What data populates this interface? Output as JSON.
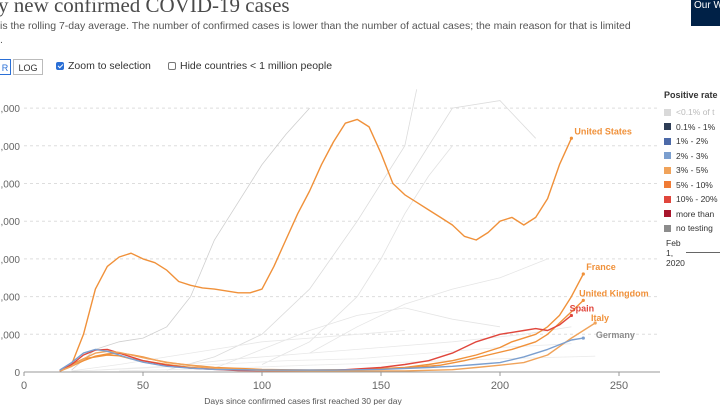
{
  "header": {
    "title": "y new confirmed COVID-19 cases",
    "subtitle": "is the rolling 7-day average. The number of confirmed cases is lower than the number of actual cases; the main reason for that is limited",
    "subtitle_cont": ".",
    "logo": "Our W in D"
  },
  "controls": {
    "linear_label": "R",
    "log_label": "LOG",
    "zoom_label": "Zoom to selection",
    "zoom_checked": true,
    "hide_label": "Hide countries < 1 million people",
    "hide_checked": false
  },
  "legend": {
    "title": "Positive rate",
    "items": [
      {
        "label": "<0.1% of t",
        "color": "#d9d9d9",
        "faded": true
      },
      {
        "label": "0.1% - 1%",
        "color": "#2e3d56"
      },
      {
        "label": "1% - 2%",
        "color": "#4d6aa8"
      },
      {
        "label": "2% - 3%",
        "color": "#7b9fcf"
      },
      {
        "label": "3% - 5%",
        "color": "#f0a35a"
      },
      {
        "label": "5% - 10%",
        "color": "#f07b35"
      },
      {
        "label": "10% - 20%",
        "color": "#e0463c"
      },
      {
        "label": "more than",
        "color": "#a8152b"
      },
      {
        "label": "no testing",
        "color": "#8c8c8c"
      }
    ]
  },
  "timeline": {
    "label_line1": "Feb",
    "label_line2": "1,",
    "label_line3": "2020"
  },
  "chart_data": {
    "type": "line",
    "xlabel": "Days since confirmed cases first reached 30 per day",
    "ylabel": "",
    "xlim": [
      0,
      270
    ],
    "ylim": [
      0,
      70000
    ],
    "x_ticks": [
      0,
      50,
      100,
      150,
      200,
      250
    ],
    "y_ticks": [
      {
        "value": 0,
        "label": "0"
      },
      {
        "value": 10000,
        "label": ",000"
      },
      {
        "value": 20000,
        "label": ",000"
      },
      {
        "value": 30000,
        "label": ",000"
      },
      {
        "value": 40000,
        "label": ",000"
      },
      {
        "value": 50000,
        "label": ",000"
      },
      {
        "value": 60000,
        "label": ",000"
      },
      {
        "value": 70000,
        "label": ",000"
      }
    ],
    "series": [
      {
        "name": "United States",
        "color": "#f0913a",
        "label_color": "#f0913a",
        "points": [
          [
            20,
            2000
          ],
          [
            25,
            10000
          ],
          [
            30,
            22000
          ],
          [
            35,
            28000
          ],
          [
            40,
            30500
          ],
          [
            45,
            31500
          ],
          [
            50,
            30000
          ],
          [
            55,
            29000
          ],
          [
            60,
            27000
          ],
          [
            65,
            24000
          ],
          [
            70,
            23000
          ],
          [
            75,
            22300
          ],
          [
            80,
            22000
          ],
          [
            85,
            21500
          ],
          [
            90,
            21000
          ],
          [
            95,
            21000
          ],
          [
            100,
            22000
          ],
          [
            105,
            28000
          ],
          [
            110,
            35000
          ],
          [
            115,
            42000
          ],
          [
            120,
            48000
          ],
          [
            125,
            55000
          ],
          [
            130,
            61000
          ],
          [
            135,
            66000
          ],
          [
            140,
            67000
          ],
          [
            145,
            65000
          ],
          [
            150,
            58000
          ],
          [
            155,
            50000
          ],
          [
            160,
            47000
          ],
          [
            165,
            45000
          ],
          [
            170,
            43000
          ],
          [
            175,
            41000
          ],
          [
            180,
            39000
          ],
          [
            185,
            36000
          ],
          [
            190,
            35000
          ],
          [
            195,
            37000
          ],
          [
            200,
            40000
          ],
          [
            205,
            41000
          ],
          [
            210,
            39000
          ],
          [
            215,
            41000
          ],
          [
            220,
            46000
          ],
          [
            225,
            55000
          ],
          [
            230,
            62000
          ]
        ],
        "label_at": [
          230,
          63000
        ]
      },
      {
        "name": "France",
        "color": "#f0913a",
        "label_color": "#f0913a",
        "points": [
          [
            15,
            300
          ],
          [
            20,
            2000
          ],
          [
            25,
            3500
          ],
          [
            30,
            4000
          ],
          [
            35,
            4500
          ],
          [
            40,
            4300
          ],
          [
            45,
            3500
          ],
          [
            50,
            3000
          ],
          [
            55,
            2500
          ],
          [
            60,
            2000
          ],
          [
            70,
            1200
          ],
          [
            80,
            800
          ],
          [
            100,
            500
          ],
          [
            120,
            500
          ],
          [
            140,
            600
          ],
          [
            160,
            1200
          ],
          [
            170,
            2000
          ],
          [
            180,
            3000
          ],
          [
            190,
            4500
          ],
          [
            200,
            6500
          ],
          [
            205,
            8000
          ],
          [
            210,
            9000
          ],
          [
            215,
            10000
          ],
          [
            220,
            12000
          ],
          [
            225,
            15000
          ],
          [
            230,
            20000
          ],
          [
            235,
            26000
          ]
        ],
        "label_at": [
          235,
          27000
        ]
      },
      {
        "name": "United Kingdom",
        "color": "#f0913a",
        "label_color": "#f0913a",
        "points": [
          [
            15,
            200
          ],
          [
            20,
            1500
          ],
          [
            25,
            3000
          ],
          [
            30,
            4200
          ],
          [
            35,
            4800
          ],
          [
            40,
            5000
          ],
          [
            45,
            4600
          ],
          [
            50,
            4000
          ],
          [
            55,
            3200
          ],
          [
            60,
            2500
          ],
          [
            70,
            1800
          ],
          [
            80,
            1200
          ],
          [
            100,
            700
          ],
          [
            120,
            500
          ],
          [
            140,
            600
          ],
          [
            160,
            1000
          ],
          [
            175,
            1800
          ],
          [
            185,
            3000
          ],
          [
            195,
            4500
          ],
          [
            205,
            6000
          ],
          [
            215,
            8000
          ],
          [
            220,
            10000
          ],
          [
            225,
            13000
          ],
          [
            230,
            16000
          ],
          [
            235,
            19000
          ]
        ],
        "label_at": [
          232,
          20000
        ]
      },
      {
        "name": "Spain",
        "color": "#e0463c",
        "label_color": "#e0463c",
        "points": [
          [
            15,
            300
          ],
          [
            20,
            2000
          ],
          [
            25,
            4500
          ],
          [
            30,
            5800
          ],
          [
            35,
            6000
          ],
          [
            40,
            5000
          ],
          [
            45,
            4000
          ],
          [
            50,
            3000
          ],
          [
            60,
            1800
          ],
          [
            70,
            1000
          ],
          [
            90,
            400
          ],
          [
            110,
            300
          ],
          [
            130,
            400
          ],
          [
            150,
            1200
          ],
          [
            160,
            2000
          ],
          [
            170,
            3000
          ],
          [
            180,
            5000
          ],
          [
            190,
            8000
          ],
          [
            200,
            10000
          ],
          [
            210,
            11000
          ],
          [
            215,
            11500
          ],
          [
            220,
            11000
          ],
          [
            225,
            12500
          ],
          [
            230,
            15000
          ]
        ],
        "label_at": [
          228,
          16000
        ]
      },
      {
        "name": "Italy",
        "color": "#f0a35a",
        "label_color": "#f0913a",
        "points": [
          [
            15,
            300
          ],
          [
            20,
            1500
          ],
          [
            25,
            3500
          ],
          [
            30,
            5000
          ],
          [
            35,
            5500
          ],
          [
            40,
            5200
          ],
          [
            45,
            4500
          ],
          [
            50,
            3800
          ],
          [
            60,
            2600
          ],
          [
            70,
            1700
          ],
          [
            80,
            1000
          ],
          [
            100,
            400
          ],
          [
            130,
            300
          ],
          [
            160,
            300
          ],
          [
            180,
            600
          ],
          [
            190,
            1200
          ],
          [
            200,
            1800
          ],
          [
            210,
            2500
          ],
          [
            220,
            4500
          ],
          [
            230,
            9000
          ],
          [
            240,
            13000
          ]
        ],
        "label_at": [
          237,
          13500
        ]
      },
      {
        "name": "Germany",
        "color": "#7b9fcf",
        "label_color": "#8c8c8c",
        "points": [
          [
            15,
            500
          ],
          [
            20,
            2500
          ],
          [
            25,
            5000
          ],
          [
            30,
            6000
          ],
          [
            35,
            5500
          ],
          [
            40,
            4500
          ],
          [
            45,
            3500
          ],
          [
            50,
            2600
          ],
          [
            60,
            1500
          ],
          [
            70,
            1000
          ],
          [
            80,
            700
          ],
          [
            100,
            500
          ],
          [
            130,
            500
          ],
          [
            150,
            700
          ],
          [
            170,
            1200
          ],
          [
            180,
            1500
          ],
          [
            190,
            2000
          ],
          [
            200,
            2500
          ],
          [
            210,
            4000
          ],
          [
            220,
            6000
          ],
          [
            230,
            8500
          ],
          [
            235,
            9000
          ]
        ],
        "label_at": [
          239,
          9000
        ]
      }
    ],
    "background_series": [
      {
        "color": "#cfcfcf",
        "points": [
          [
            20,
            500
          ],
          [
            30,
            6000
          ],
          [
            40,
            8000
          ],
          [
            50,
            9000
          ],
          [
            60,
            12000
          ],
          [
            70,
            20000
          ],
          [
            80,
            35000
          ],
          [
            90,
            45000
          ],
          [
            100,
            55000
          ],
          [
            110,
            63000
          ],
          [
            120,
            70000
          ]
        ]
      },
      {
        "color": "#dcdcdc",
        "points": [
          [
            60,
            500
          ],
          [
            80,
            4000
          ],
          [
            100,
            10000
          ],
          [
            120,
            22000
          ],
          [
            140,
            40000
          ],
          [
            160,
            60000
          ],
          [
            165,
            75000
          ]
        ]
      },
      {
        "color": "#e2e2e2",
        "points": [
          [
            100,
            2000
          ],
          [
            120,
            8000
          ],
          [
            140,
            20000
          ],
          [
            150,
            30000
          ],
          [
            160,
            42000
          ],
          [
            170,
            52000
          ],
          [
            180,
            60000
          ]
        ]
      },
      {
        "color": "#dcdcdc",
        "points": [
          [
            160,
            50000
          ],
          [
            180,
            70000
          ],
          [
            200,
            72000
          ],
          [
            215,
            62000
          ]
        ]
      },
      {
        "color": "#e5e5e5",
        "points": [
          [
            120,
            5000
          ],
          [
            140,
            12000
          ],
          [
            160,
            18000
          ],
          [
            180,
            22000
          ],
          [
            200,
            25000
          ],
          [
            220,
            30000
          ]
        ]
      },
      {
        "color": "#e5e5e5",
        "points": [
          [
            80,
            1000
          ],
          [
            100,
            6000
          ],
          [
            120,
            11000
          ],
          [
            140,
            15000
          ],
          [
            160,
            17000
          ],
          [
            180,
            14000
          ],
          [
            200,
            12000
          ]
        ]
      },
      {
        "color": "#e8e8e8",
        "points": [
          [
            20,
            300
          ],
          [
            40,
            2000
          ],
          [
            60,
            4000
          ],
          [
            80,
            6000
          ],
          [
            100,
            8000
          ],
          [
            120,
            9000
          ],
          [
            140,
            10000
          ],
          [
            160,
            11000
          ]
        ]
      },
      {
        "color": "#e8e8e8",
        "points": [
          [
            30,
            500
          ],
          [
            60,
            1500
          ],
          [
            90,
            3500
          ],
          [
            120,
            5000
          ],
          [
            150,
            6500
          ],
          [
            180,
            8000
          ],
          [
            210,
            10000
          ],
          [
            230,
            12000
          ]
        ]
      },
      {
        "color": "#ececec",
        "points": [
          [
            20,
            200
          ],
          [
            50,
            1000
          ],
          [
            80,
            2000
          ],
          [
            110,
            3000
          ],
          [
            140,
            3500
          ],
          [
            170,
            5000
          ],
          [
            200,
            6500
          ],
          [
            230,
            7500
          ]
        ]
      },
      {
        "color": "#ececec",
        "points": [
          [
            40,
            300
          ],
          [
            80,
            900
          ],
          [
            120,
            1800
          ],
          [
            160,
            2600
          ],
          [
            200,
            3500
          ],
          [
            240,
            4200
          ]
        ]
      }
    ]
  }
}
